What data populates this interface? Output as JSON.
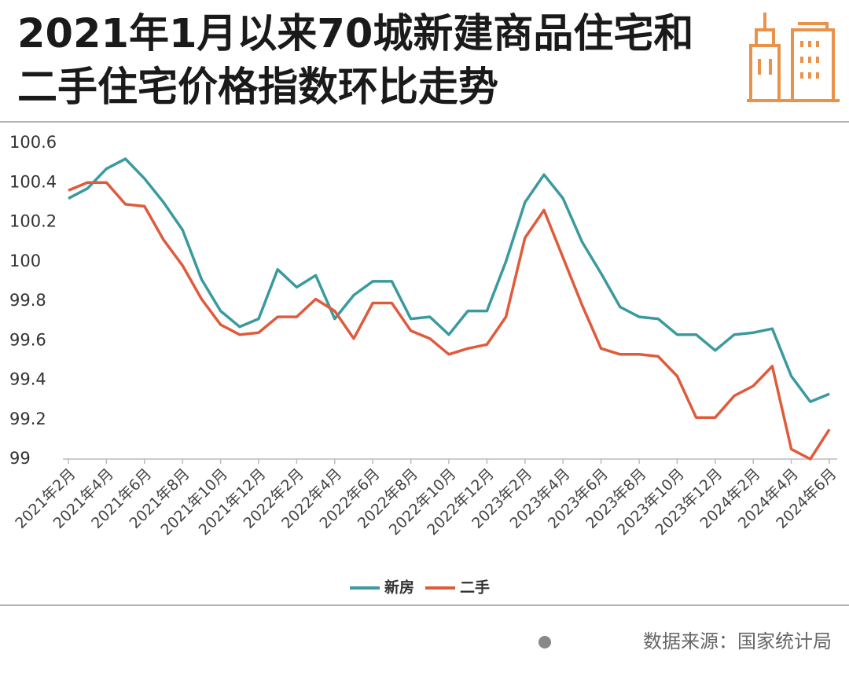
{
  "chart_data": {
    "type": "line",
    "title": "2021年1月以来70城新建商品住宅和二手住宅价格指数环比走势",
    "source": "数据来源：国家统计局",
    "categories": [
      "2021年2月",
      null,
      "2021年4月",
      null,
      "2021年6月",
      null,
      "2021年8月",
      null,
      "2021年10月",
      null,
      "2021年12月",
      null,
      "2022年2月",
      null,
      "2022年4月",
      null,
      "2022年6月",
      null,
      "2022年8月",
      null,
      "2022年10月",
      null,
      "2022年12月",
      null,
      "2023年2月",
      null,
      "2023年4月",
      null,
      "2023年6月",
      null,
      "2023年8月",
      null,
      "2023年10月",
      null,
      "2023年12月",
      null,
      "2024年2月",
      null,
      "2024年4月",
      null,
      "2024年6月"
    ],
    "series": [
      {
        "name": "新房",
        "color": "#3a9a9e",
        "values": [
          100.32,
          100.37,
          100.47,
          100.52,
          100.42,
          100.3,
          100.16,
          99.91,
          99.75,
          99.67,
          99.71,
          99.96,
          99.87,
          99.93,
          99.71,
          99.83,
          99.9,
          99.9,
          99.71,
          99.72,
          99.63,
          99.75,
          99.75,
          100.0,
          100.3,
          100.44,
          100.32,
          100.1,
          99.94,
          99.77,
          99.72,
          99.71,
          99.63,
          99.63,
          99.55,
          99.63,
          99.64,
          99.66,
          99.42,
          99.29,
          99.33
        ]
      },
      {
        "name": "二手",
        "color": "#e05a3c",
        "values": [
          100.36,
          100.4,
          100.4,
          100.29,
          100.28,
          100.11,
          99.98,
          99.81,
          99.68,
          99.63,
          99.64,
          99.72,
          99.72,
          99.81,
          99.75,
          99.61,
          99.79,
          99.79,
          99.65,
          99.61,
          99.53,
          99.56,
          99.58,
          99.72,
          100.12,
          100.26,
          100.02,
          99.78,
          99.56,
          99.53,
          99.53,
          99.52,
          99.42,
          99.21,
          99.21,
          99.32,
          99.37,
          99.47,
          99.05,
          99.0,
          99.15
        ]
      }
    ],
    "ylim": [
      99,
      100.6
    ],
    "yticks": [
      {
        "value": 100.6,
        "label": "100.6"
      },
      {
        "value": 100.4,
        "label": "100.4"
      },
      {
        "value": 100.2,
        "label": "100.2"
      },
      100,
      {
        "value": 99.8,
        "label": "99.8"
      },
      {
        "value": 99.6,
        "label": "99.6"
      },
      {
        "value": 99.4,
        "label": "99.4"
      },
      {
        "value": 99.2,
        "label": "99.2"
      },
      99
    ],
    "grid": false,
    "legend": "bottom"
  }
}
